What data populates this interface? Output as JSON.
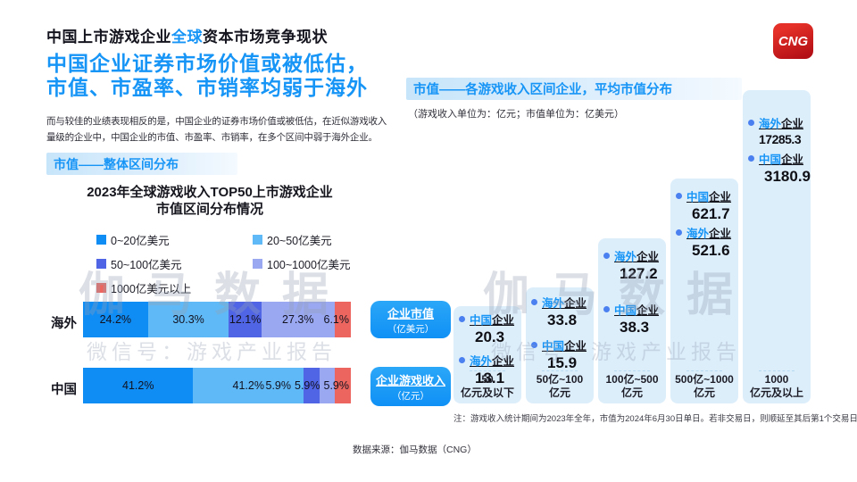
{
  "page": {
    "title_parts": [
      "中国上市游戏企业",
      "全球",
      "资本市场竞争现状"
    ],
    "headline_line1": "中国企业证券市场价值或被低估，",
    "headline_line2": "市值、市盈率、市销率均弱于海外",
    "intro_line1": "而与较佳的业绩表现相反的是，中国企业的证券市场价值或被低估，在近似游戏收入",
    "intro_line2": "量级的企业中，中国企业的市值、市盈率、市销率，在多个区间中弱于海外企业。",
    "logo_text": "CNG",
    "note": "注：游戏收入统计期间为2023年全年，市值为2024年6月30日单日。若非交易日，则顺延至其后第1个交易日。",
    "source": "数据来源：伽马数据（CNG）",
    "watermark_line1": "伽马数据",
    "watermark_line2": "微信号：游戏产业报告"
  },
  "left_chart": {
    "header": "市值——整体区间分布",
    "title_line1": "2023年全球游戏收入TOP50上市游戏企业",
    "title_line2": "市值区间分布情况"
  },
  "right_chart": {
    "header": "市值——各游戏收入区间企业，平均市值分布",
    "subtitle": "（游戏收入单位为：亿元；市值单位为：亿美元）",
    "pills": [
      {
        "main": "企业市值",
        "sub": "（亿美元）"
      },
      {
        "main": "企业游戏收入",
        "sub": "（亿元）"
      }
    ]
  },
  "colors": {
    "accent_blue": "#1795f6",
    "logo_red": "#c2181c",
    "column_bg": "#ddeefb"
  },
  "chart_data": [
    {
      "type": "bar",
      "variant": "horizontal-stacked",
      "title": "2023年全球游戏收入TOP50上市游戏企业市值区间分布情况",
      "unit": "%",
      "legend": [
        {
          "label": "0~20亿美元",
          "color": "#0f8df5"
        },
        {
          "label": "20~50亿美元",
          "color": "#5fb9f7"
        },
        {
          "label": "50~100亿美元",
          "color": "#5064e6"
        },
        {
          "label": "100~1000亿美元",
          "color": "#9aa8f1"
        },
        {
          "label": "1000亿美元以上",
          "color": "#ec665f"
        }
      ],
      "rows": [
        {
          "category": "海外",
          "values": [
            24.2,
            30.3,
            12.1,
            27.3,
            6.1
          ]
        },
        {
          "category": "中国",
          "values": [
            41.2,
            41.2,
            5.9,
            5.9,
            5.9
          ]
        }
      ]
    },
    {
      "type": "bar",
      "variant": "stepped-columns",
      "title": "市值——各游戏收入区间企业，平均市值分布",
      "value_unit": "亿美元",
      "category_unit": "亿元",
      "columns": [
        {
          "range_line1": "50",
          "range_line2": "亿元及以下",
          "entries": [
            {
              "name": "中国",
              "suffix": "企业",
              "value": "20.3"
            },
            {
              "name": "海外",
              "suffix": "企业",
              "value": "13.1"
            }
          ]
        },
        {
          "range_line1": "50亿~100",
          "range_line2": "亿元",
          "entries": [
            {
              "name": "海外",
              "suffix": "企业",
              "value": "33.8"
            },
            {
              "name": "中国",
              "suffix": "企业",
              "value": "15.9"
            }
          ]
        },
        {
          "range_line1": "100亿~500",
          "range_line2": "亿元",
          "entries": [
            {
              "name": "海外",
              "suffix": "企业",
              "value": "127.2"
            },
            {
              "name": "中国",
              "suffix": "企业",
              "value": "38.3"
            }
          ]
        },
        {
          "range_line1": "500亿~1000",
          "range_line2": "亿元",
          "entries": [
            {
              "name": "中国",
              "suffix": "企业",
              "value": "621.7"
            },
            {
              "name": "海外",
              "suffix": "企业",
              "value": "521.6"
            }
          ]
        },
        {
          "range_line1": "1000",
          "range_line2": "亿元及以上",
          "entries": [
            {
              "name": "海外",
              "suffix": "企业",
              "value": "17285.3"
            },
            {
              "name": "中国",
              "suffix": "企业",
              "value": "3180.9"
            }
          ]
        }
      ]
    }
  ]
}
